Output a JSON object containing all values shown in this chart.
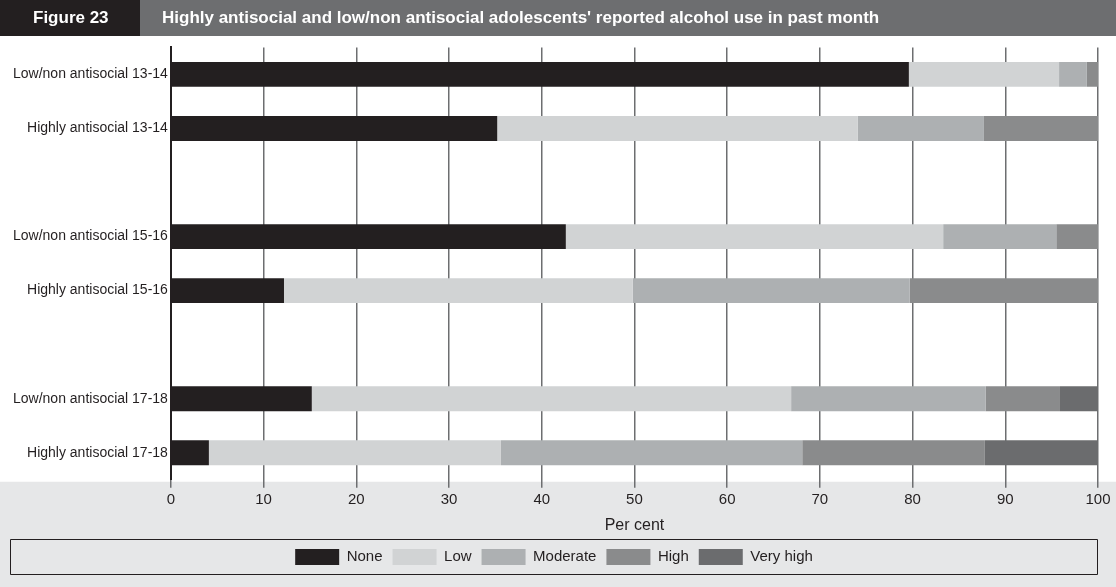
{
  "chart_data": {
    "type": "bar",
    "orientation": "horizontal",
    "stacked": true,
    "title": "Highly antisocial and low/non antisocial adolescents' reported alcohol use in past month",
    "annotations": [
      "Figure 23"
    ],
    "xlabel": "Per cent",
    "categories": [
      "Low/non antisocial 13-14",
      "Highly antisocial 13-14",
      null,
      "Low/non antisocial 15-16",
      "Highly antisocial 15-16",
      null,
      "Low/non antisocial 17-18",
      "Highly antisocial 17-18"
    ],
    "series": [
      {
        "name": "None",
        "color": "#231f20",
        "values": [
          79.6,
          35.2,
          null,
          42.6,
          12.2,
          null,
          15.2,
          4.1
        ]
      },
      {
        "name": "Low",
        "color": "#d1d3d4",
        "values": [
          16.2,
          38.9,
          null,
          40.7,
          37.6,
          null,
          51.7,
          31.5
        ]
      },
      {
        "name": "Moderate",
        "color": "#adb0b2",
        "values": [
          3.0,
          13.6,
          null,
          12.2,
          29.9,
          null,
          21.0,
          32.5
        ]
      },
      {
        "name": "High",
        "color": "#8a8b8c",
        "values": [
          1.2,
          12.3,
          null,
          4.5,
          20.3,
          null,
          8.0,
          19.7
        ]
      },
      {
        "name": "Very high",
        "color": "#6b6c6e",
        "values": [
          0,
          0,
          null,
          0,
          0,
          null,
          4.1,
          12.2
        ]
      }
    ],
    "xlim": [
      0,
      100
    ],
    "xticks": [
      0,
      10,
      20,
      30,
      40,
      50,
      60,
      70,
      80,
      90,
      100
    ],
    "grid": "x",
    "legend": "bottom"
  }
}
